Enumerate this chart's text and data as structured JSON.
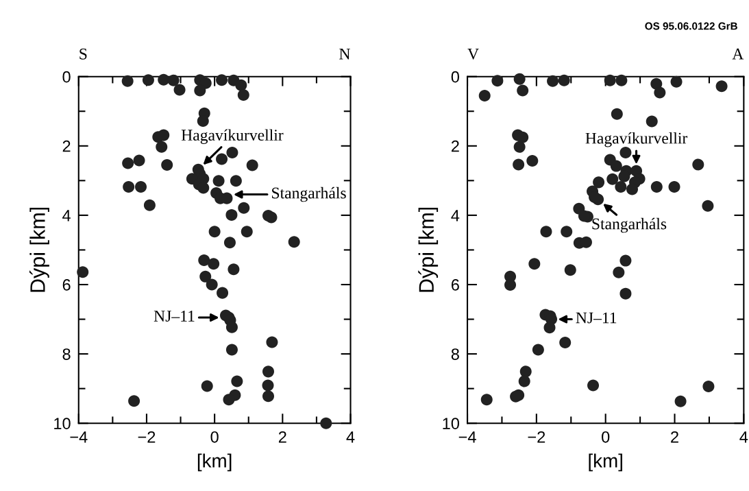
{
  "chart_data": [
    {
      "type": "scatter",
      "xlabel": "[km]",
      "ylabel": "Dýpi [km]",
      "xlim": [
        -4,
        4
      ],
      "xticks": [
        -4,
        -2,
        0,
        2,
        4
      ],
      "ylim": [
        10,
        0
      ],
      "yticks": [
        0,
        2,
        4,
        6,
        8,
        10
      ],
      "grid": false,
      "marker": "circle",
      "annotations": [
        "S",
        "N",
        {
          "text": "Hagavíkurvellir",
          "x": -0.48,
          "y": 2.68
        },
        {
          "text": "Stangarháls",
          "x": 0.36,
          "y": 3.4
        },
        {
          "text": "NJ–11",
          "x": 0.33,
          "y": 6.95
        }
      ],
      "series": [
        {
          "color": "#222222",
          "x": [
            -2.56,
            -1.95,
            -1.5,
            -1.21,
            -1.03,
            -0.43,
            -0.26,
            -0.43,
            0.21,
            0.56,
            0.78,
            0.85,
            -0.3,
            -0.34,
            -1.66,
            -1.5,
            -1.56,
            -2.55,
            -2.22,
            -1.4,
            0.52,
            0.21,
            1.11,
            -0.48,
            -0.43,
            -0.66,
            -0.33,
            -0.46,
            -0.33,
            -2.53,
            -2.17,
            -1.91,
            0.12,
            0.63,
            0.05,
            0.17,
            0.36,
            0.86,
            0.5,
            1.58,
            1.67,
            0.0,
            0.95,
            0.45,
            2.34,
            -0.31,
            -0.03,
            0.56,
            -3.88,
            -0.27,
            -0.08,
            0.23,
            0.33,
            0.42,
            0.46,
            0.51,
            1.69,
            0.51,
            1.58,
            0.66,
            -0.22,
            1.57,
            1.58,
            0.6,
            0.42,
            -2.37,
            3.28
          ],
          "values": [
            0.13,
            0.1,
            0.09,
            0.11,
            0.38,
            0.1,
            0.19,
            0.4,
            0.1,
            0.11,
            0.25,
            0.53,
            1.06,
            1.28,
            1.74,
            1.69,
            2.03,
            2.5,
            2.42,
            2.55,
            2.19,
            2.38,
            2.56,
            2.68,
            2.81,
            2.95,
            2.95,
            3.11,
            3.21,
            3.18,
            3.18,
            3.71,
            3.01,
            3.01,
            3.36,
            3.51,
            3.51,
            3.79,
            3.99,
            4.01,
            4.06,
            4.47,
            4.47,
            4.79,
            4.77,
            5.3,
            5.4,
            5.56,
            5.64,
            5.77,
            6.0,
            6.24,
            6.89,
            6.95,
            7.03,
            7.23,
            7.66,
            7.88,
            8.51,
            8.79,
            8.93,
            8.91,
            9.22,
            9.19,
            9.32,
            9.36,
            10.0
          ]
        }
      ]
    },
    {
      "type": "scatter",
      "xlabel": "[km]",
      "ylabel": "Dýpi [km]",
      "xlim": [
        -4,
        4
      ],
      "xticks": [
        -4,
        -2,
        0,
        2,
        4
      ],
      "ylim": [
        10,
        0
      ],
      "yticks": [
        0,
        2,
        4,
        6,
        8,
        10
      ],
      "grid": false,
      "marker": "circle",
      "annotations": [
        "V",
        "A",
        {
          "text": "Hagavíkurvellir",
          "x": 0.89,
          "y": 2.72
        },
        {
          "text": "Stangarháls",
          "x": -0.22,
          "y": 3.54
        },
        {
          "text": "NJ–11",
          "x": -1.57,
          "y": 7.0
        },
        "OS 95.06.0122 GrB"
      ],
      "series": [
        {
          "color": "#222222",
          "x": [
            -3.13,
            -2.49,
            -2.4,
            -3.5,
            -1.53,
            -1.2,
            0.13,
            0.46,
            1.47,
            1.57,
            2.05,
            3.36,
            0.33,
            1.34,
            -2.54,
            -2.4,
            -2.49,
            -2.52,
            -2.12,
            0.58,
            0.13,
            0.31,
            0.6,
            0.89,
            0.54,
            0.98,
            0.2,
            0.85,
            0.44,
            0.77,
            -0.2,
            -0.38,
            -0.22,
            -0.32,
            1.48,
            1.99,
            2.68,
            2.96,
            -0.77,
            -0.52,
            -0.62,
            -1.72,
            -1.13,
            -0.76,
            -0.56,
            0.58,
            -2.06,
            -1.02,
            0.38,
            -2.76,
            -2.76,
            0.58,
            -1.74,
            -1.6,
            -1.57,
            -1.62,
            -1.17,
            -1.95,
            -2.31,
            -2.35,
            -2.52,
            -2.6,
            -0.36,
            2.98,
            2.17,
            -3.44
          ],
          "values": [
            0.12,
            0.07,
            0.4,
            0.55,
            0.13,
            0.11,
            0.11,
            0.11,
            0.21,
            0.46,
            0.15,
            0.28,
            1.08,
            1.29,
            1.69,
            1.75,
            2.03,
            2.54,
            2.43,
            2.19,
            2.4,
            2.58,
            2.72,
            2.72,
            2.88,
            2.95,
            2.96,
            3.05,
            3.18,
            3.25,
            3.05,
            3.31,
            3.54,
            3.48,
            3.18,
            3.18,
            2.54,
            3.73,
            3.81,
            4.04,
            4.02,
            4.47,
            4.47,
            4.8,
            4.78,
            5.31,
            5.4,
            5.58,
            5.65,
            5.77,
            6.01,
            6.26,
            6.87,
            6.91,
            7.0,
            7.24,
            7.67,
            7.88,
            8.51,
            8.79,
            9.19,
            9.23,
            8.91,
            8.94,
            9.37,
            9.32
          ]
        }
      ]
    }
  ]
}
